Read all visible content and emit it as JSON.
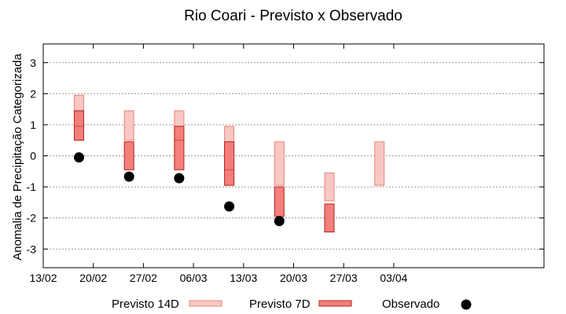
{
  "chart_data": {
    "type": "box",
    "title": "Rio Coari - Previsto x Observado",
    "xlabel": "",
    "ylabel": "Anomalia de Precipitação Categorizada",
    "ylim": [
      -3.6,
      3.6
    ],
    "yticks": [
      3,
      2,
      1,
      0,
      -1,
      -2,
      -3
    ],
    "ytick_labels": [
      "3",
      "2",
      "1",
      "0",
      "-1",
      "-2",
      "-3"
    ],
    "grid": true,
    "xlim_days": [
      0,
      70
    ],
    "xticks": [
      {
        "label": "13/02",
        "day": 0
      },
      {
        "label": "20/02",
        "day": 7
      },
      {
        "label": "27/02",
        "day": 14
      },
      {
        "label": "06/03",
        "day": 21
      },
      {
        "label": "13/03",
        "day": 28
      },
      {
        "label": "20/03",
        "day": 35
      },
      {
        "label": "27/03",
        "day": 42
      },
      {
        "label": "03/04",
        "day": 49
      }
    ],
    "series": [
      {
        "name": "Previsto 14D",
        "fill": "#f9c8c3",
        "stroke": "#e8837a",
        "points": [
          {
            "day": 5,
            "low": 0.5,
            "mid": 1.45,
            "high": 1.95
          },
          {
            "day": 12,
            "low": 0.5,
            "mid": 1.45,
            "high": 1.45
          },
          {
            "day": 19,
            "low": 0.5,
            "mid": 1.45,
            "high": 1.45
          },
          {
            "day": 26,
            "low": -0.45,
            "mid": 0.45,
            "high": 0.95
          },
          {
            "day": 33,
            "low": -0.95,
            "mid": -0.95,
            "high": 0.45
          },
          {
            "day": 40,
            "low": -1.45,
            "mid": -0.55,
            "high": -0.55
          },
          {
            "day": 47,
            "low": -0.95,
            "mid": 0.45,
            "high": 0.45
          }
        ]
      },
      {
        "name": "Previsto 7D",
        "fill": "#f47f7b",
        "stroke": "#b52020",
        "points": [
          {
            "day": 5,
            "low": 0.5,
            "mid": 0.95,
            "high": 1.45
          },
          {
            "day": 12,
            "low": -0.45,
            "mid": -0.45,
            "high": 0.45
          },
          {
            "day": 19,
            "low": -0.45,
            "mid": 0.5,
            "high": 0.95
          },
          {
            "day": 26,
            "low": -0.95,
            "mid": -0.45,
            "high": 0.45
          },
          {
            "day": 33,
            "low": -1.95,
            "mid": -1.0,
            "high": -1.0
          },
          {
            "day": 40,
            "low": -2.45,
            "mid": -1.55,
            "high": -1.55
          }
        ]
      },
      {
        "name": "Observado",
        "color": "#000000",
        "points": [
          {
            "day": 5,
            "value": -0.05
          },
          {
            "day": 12,
            "value": -0.67
          },
          {
            "day": 19,
            "value": -0.72
          },
          {
            "day": 26,
            "value": -1.63
          },
          {
            "day": 33,
            "value": -2.1
          }
        ]
      }
    ],
    "legend": {
      "position": "bottom"
    }
  }
}
